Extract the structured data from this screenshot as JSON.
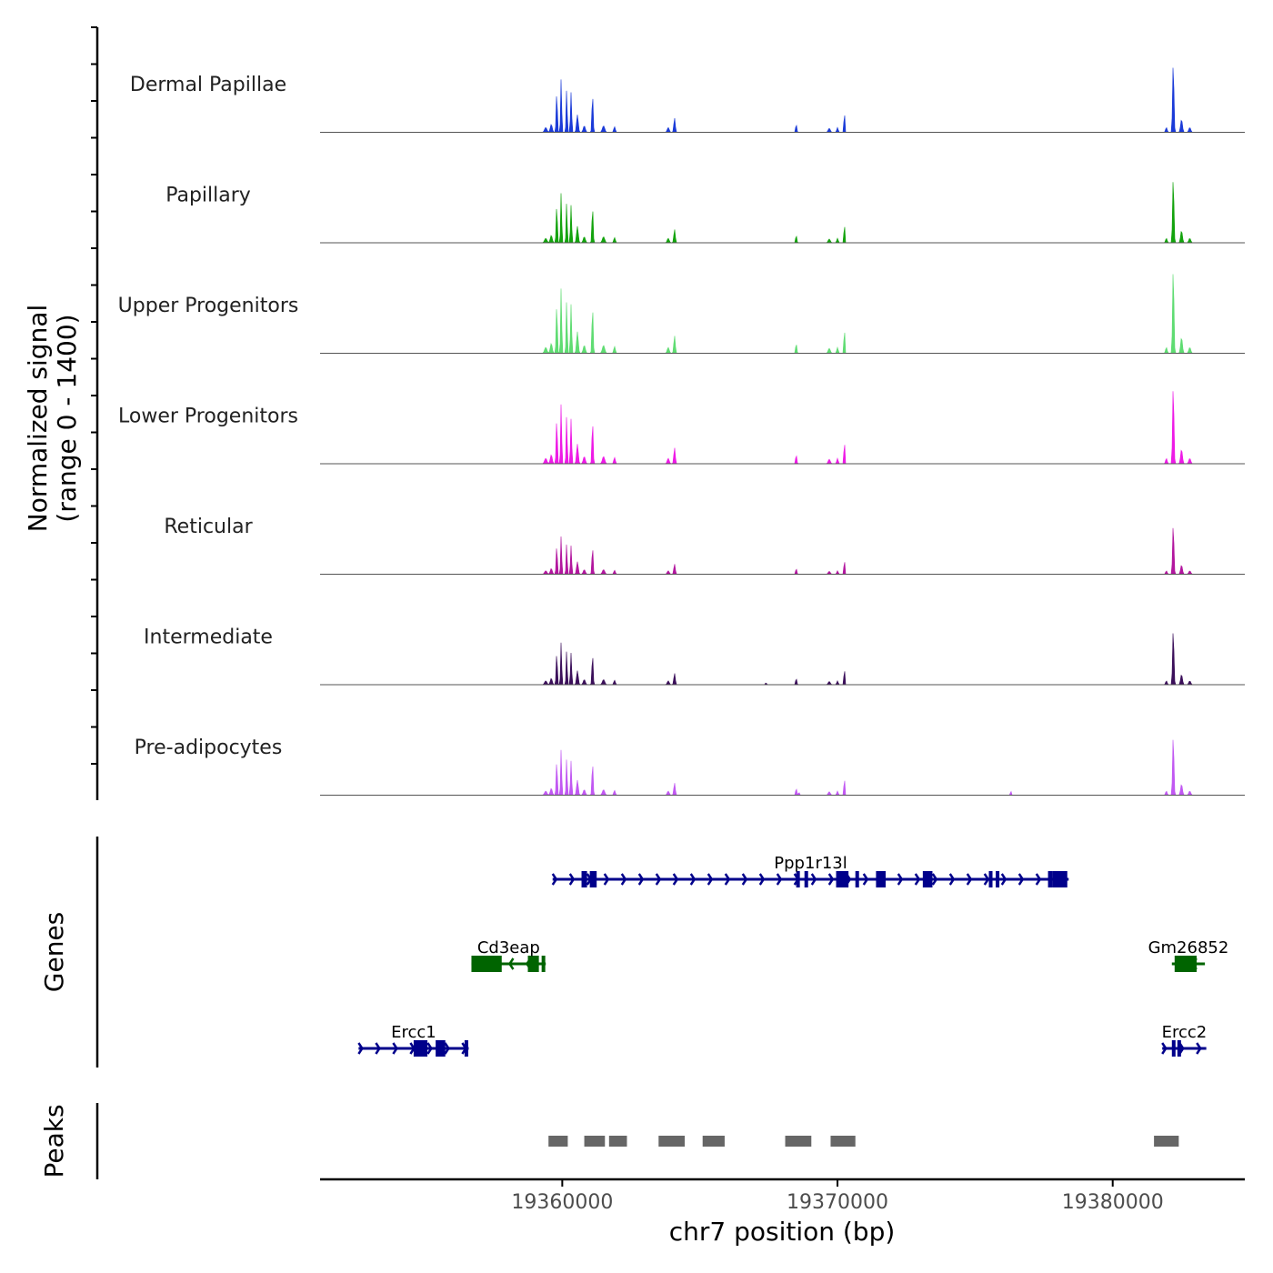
{
  "chart_data": {
    "type": "area",
    "chromosome": "chr7",
    "x_range": [
      19351200,
      19384800
    ],
    "signal_ylabel": [
      "Normalized signal",
      "(range 0 - 1400)"
    ],
    "signal_range": [
      0,
      1400
    ],
    "xlabel": "chr7 position (bp)",
    "x_ticks": [
      {
        "value": 19360000,
        "label": "19360000"
      },
      {
        "value": 19370000,
        "label": "19370000"
      },
      {
        "value": 19380000,
        "label": "19380000"
      }
    ],
    "base_peaks": [
      {
        "pos": 19359400,
        "h": 0.06,
        "w": 180
      },
      {
        "pos": 19359600,
        "h": 0.1,
        "w": 150
      },
      {
        "pos": 19359800,
        "h": 0.5,
        "w": 90
      },
      {
        "pos": 19359960,
        "h": 0.68,
        "w": 80
      },
      {
        "pos": 19360160,
        "h": 0.55,
        "w": 80
      },
      {
        "pos": 19360320,
        "h": 0.5,
        "w": 90
      },
      {
        "pos": 19360550,
        "h": 0.22,
        "w": 130
      },
      {
        "pos": 19360800,
        "h": 0.08,
        "w": 160
      },
      {
        "pos": 19361100,
        "h": 0.48,
        "w": 90
      },
      {
        "pos": 19361500,
        "h": 0.08,
        "w": 180
      },
      {
        "pos": 19361900,
        "h": 0.07,
        "w": 120
      },
      {
        "pos": 19363850,
        "h": 0.06,
        "w": 150
      },
      {
        "pos": 19364080,
        "h": 0.18,
        "w": 110
      },
      {
        "pos": 19368500,
        "h": 0.1,
        "w": 90
      },
      {
        "pos": 19369700,
        "h": 0.05,
        "w": 160
      },
      {
        "pos": 19370000,
        "h": 0.06,
        "w": 110
      },
      {
        "pos": 19370250,
        "h": 0.3,
        "w": 65
      },
      {
        "pos": 19381950,
        "h": 0.06,
        "w": 120
      },
      {
        "pos": 19382200,
        "h": 0.88,
        "w": 100
      },
      {
        "pos": 19382500,
        "h": 0.16,
        "w": 140
      },
      {
        "pos": 19382800,
        "h": 0.06,
        "w": 150
      }
    ],
    "tracks": [
      {
        "name": "Dermal Papillae",
        "color": "#1a3ad8",
        "scale": 0.98,
        "extra": []
      },
      {
        "name": "Papillary",
        "color": "#13a30d",
        "scale": 0.92,
        "extra": []
      },
      {
        "name": "Upper Progenitors",
        "color": "#5fdc72",
        "scale": 1.2,
        "extra": []
      },
      {
        "name": "Lower Progenitors",
        "color": "#ee1ae6",
        "scale": 1.1,
        "extra": []
      },
      {
        "name": "Reticular",
        "color": "#b2169e",
        "scale": 0.7,
        "extra": []
      },
      {
        "name": "Intermediate",
        "color": "#3b0f5a",
        "scale": 0.78,
        "extra": [
          {
            "pos": 19367400,
            "h": 0.03,
            "w": 100
          }
        ]
      },
      {
        "name": "Pre-adipocytes",
        "color": "#c158f2",
        "scale": 0.84,
        "extra": [
          {
            "pos": 19376300,
            "h": 0.06,
            "w": 80
          },
          {
            "pos": 19368600,
            "h": 0.04,
            "w": 100
          }
        ]
      }
    ],
    "genes_ylabel": "Genes",
    "genes": [
      {
        "name": "Ppp1r13l",
        "row": 0,
        "start": 19359650,
        "end": 19378400,
        "strand": "+",
        "color": "#00008b",
        "exons": [
          [
            19360700,
            19360900
          ],
          [
            19361000,
            19361250
          ],
          [
            19368500,
            19368600
          ],
          [
            19368800,
            19368900
          ],
          [
            19369950,
            19370400
          ],
          [
            19370650,
            19370750
          ],
          [
            19371400,
            19371750
          ],
          [
            19373100,
            19373450
          ],
          [
            19375500,
            19375600
          ],
          [
            19375750,
            19375850
          ],
          [
            19377650,
            19377800
          ],
          [
            19377800,
            19377850
          ],
          [
            19377850,
            19378350
          ]
        ]
      },
      {
        "name": "Cd3eap",
        "row": 1,
        "start": 19356700,
        "end": 19359400,
        "strand": "-",
        "color": "#006400",
        "exons": [
          [
            19356700,
            19357800
          ],
          [
            19358750,
            19359150
          ],
          [
            19359250,
            19359300
          ]
        ]
      },
      {
        "name": "Gm26852",
        "row": 1,
        "start": 19382150,
        "end": 19383350,
        "strand": "-",
        "color": "#006400",
        "exons": [
          [
            19382250,
            19383050
          ]
        ]
      },
      {
        "name": "Ercc1",
        "row": 2,
        "start": 19352600,
        "end": 19356600,
        "strand": "+",
        "color": "#00008b",
        "exons": [
          [
            19354600,
            19355100
          ],
          [
            19355400,
            19355750
          ],
          [
            19356450,
            19356550
          ]
        ]
      },
      {
        "name": "Ercc2",
        "row": 2,
        "start": 19381800,
        "end": 19383400,
        "strand": "+",
        "color": "#00008b",
        "exons": [
          [
            19382150,
            19382250
          ],
          [
            19382350,
            19382450
          ]
        ]
      }
    ],
    "peaks_ylabel": "Peaks",
    "peaks": [
      [
        19359500,
        19360200
      ],
      [
        19360800,
        19361550
      ],
      [
        19361700,
        19362350
      ],
      [
        19363500,
        19364450
      ],
      [
        19365100,
        19365900
      ],
      [
        19368100,
        19369050
      ],
      [
        19369750,
        19370650
      ],
      [
        19381500,
        19382400
      ]
    ]
  }
}
